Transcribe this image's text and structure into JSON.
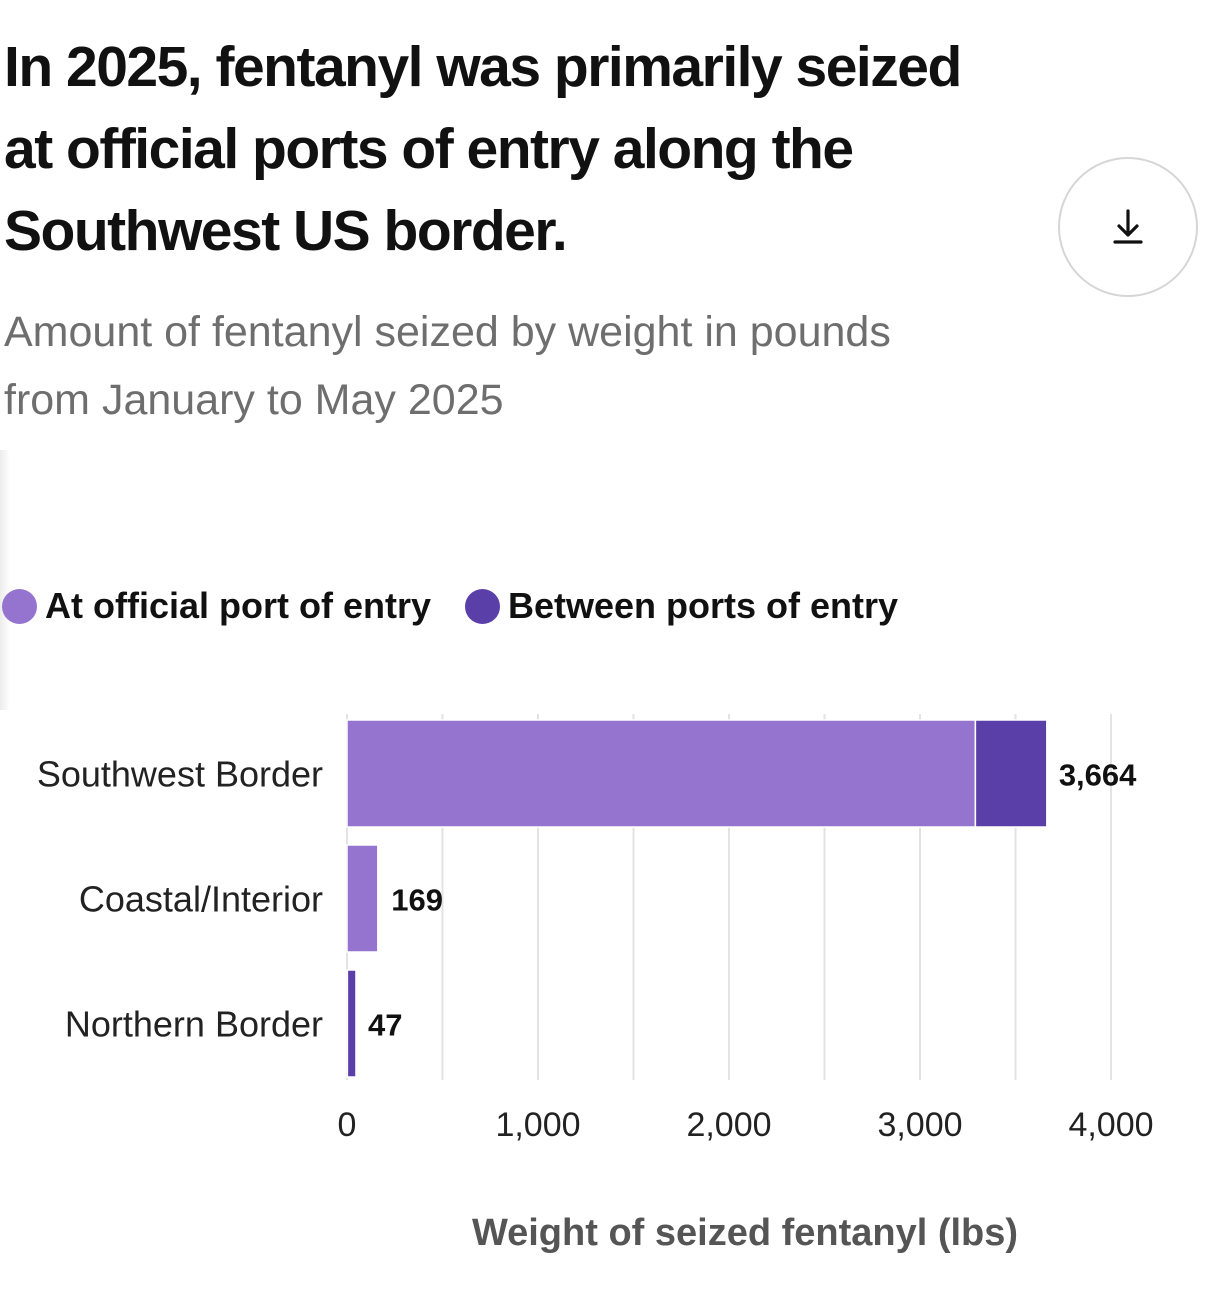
{
  "title": "In 2025, fentanyl was primarily seized at official ports of entry along the Southwest US border.",
  "subtitle": "Amount of fentanyl seized by weight in pounds from January to May 2025",
  "download_icon": "download-icon",
  "legend": [
    {
      "label": "At official port of entry",
      "color": "#9574D0"
    },
    {
      "label": "Between ports of entry",
      "color": "#5B3FA8"
    }
  ],
  "chart_data": {
    "type": "bar",
    "orientation": "horizontal",
    "stacked": true,
    "title": "In 2025, fentanyl was primarily seized at official ports of entry along the Southwest US border.",
    "subtitle": "Amount of fentanyl seized by weight in pounds from January to May 2025",
    "xlabel": "Weight of seized fentanyl (lbs)",
    "ylabel": "",
    "categories": [
      "Southwest Border",
      "Coastal/Interior",
      "Northern Border"
    ],
    "series": [
      {
        "name": "At official port of entry",
        "color": "#9574D0",
        "values": [
          3290,
          162,
          2
        ]
      },
      {
        "name": "Between ports of entry",
        "color": "#5B3FA8",
        "values": [
          374,
          7,
          45
        ]
      }
    ],
    "totals": [
      "3,664",
      "169",
      "47"
    ],
    "xlim": [
      0,
      4000
    ],
    "x_ticks": [
      0,
      1000,
      2000,
      3000,
      4000
    ],
    "x_tick_labels": [
      "0",
      "1,000",
      "2,000",
      "3,000",
      "4,000"
    ],
    "grid": true,
    "legend_position": "top-left"
  }
}
